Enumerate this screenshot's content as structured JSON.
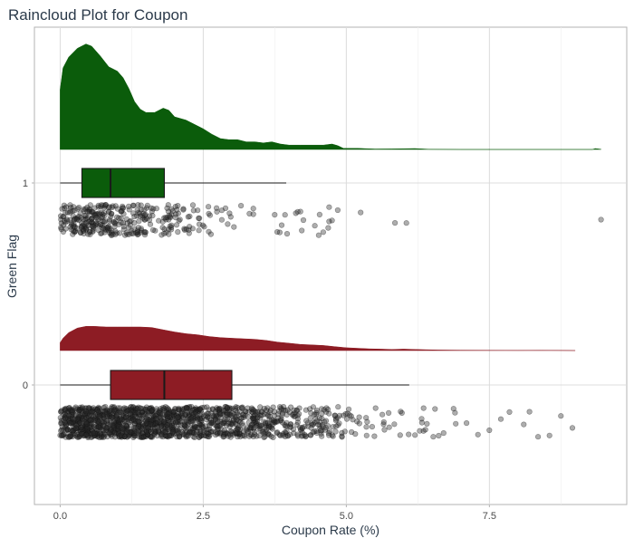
{
  "chart_data": {
    "type": "raincloud",
    "title": "Raincloud Plot for Coupon",
    "xlabel": "Coupon Rate (%)",
    "ylabel": "Green Flag",
    "xlim": [
      -0.45,
      9.9
    ],
    "x_ticks": [
      0.0,
      2.5,
      5.0,
      7.5
    ],
    "x_tick_labels": [
      "0.0",
      "2.5",
      "5.0",
      "7.5"
    ],
    "categories": [
      "1",
      "0"
    ],
    "grid": true,
    "legend": "none",
    "series": [
      {
        "category": "1",
        "color": "#0b5c0b",
        "box": {
          "min": 0.0,
          "q1": 0.38,
          "median": 0.88,
          "q3": 1.82,
          "max": 3.95
        },
        "density": [
          [
            0.0,
            0.55
          ],
          [
            0.05,
            0.75
          ],
          [
            0.15,
            0.85
          ],
          [
            0.3,
            0.93
          ],
          [
            0.45,
            0.97
          ],
          [
            0.55,
            0.95
          ],
          [
            0.7,
            0.86
          ],
          [
            0.85,
            0.76
          ],
          [
            1.0,
            0.72
          ],
          [
            1.1,
            0.66
          ],
          [
            1.2,
            0.56
          ],
          [
            1.3,
            0.44
          ],
          [
            1.4,
            0.37
          ],
          [
            1.5,
            0.34
          ],
          [
            1.65,
            0.34
          ],
          [
            1.8,
            0.38
          ],
          [
            1.9,
            0.36
          ],
          [
            2.0,
            0.3
          ],
          [
            2.2,
            0.27
          ],
          [
            2.35,
            0.23
          ],
          [
            2.5,
            0.19
          ],
          [
            2.65,
            0.14
          ],
          [
            2.8,
            0.1
          ],
          [
            2.95,
            0.09
          ],
          [
            3.1,
            0.09
          ],
          [
            3.25,
            0.07
          ],
          [
            3.4,
            0.07
          ],
          [
            3.55,
            0.06
          ],
          [
            3.7,
            0.07
          ],
          [
            3.85,
            0.05
          ],
          [
            4.0,
            0.04
          ],
          [
            4.2,
            0.04
          ],
          [
            4.4,
            0.04
          ],
          [
            4.6,
            0.04
          ],
          [
            4.75,
            0.05
          ],
          [
            4.85,
            0.035
          ],
          [
            4.95,
            0.01
          ],
          [
            5.2,
            0.01
          ],
          [
            5.5,
            0.004
          ],
          [
            5.8,
            0.005
          ],
          [
            6.2,
            0.008
          ],
          [
            6.45,
            0.002
          ],
          [
            7.0,
            0.0
          ],
          [
            9.3,
            0.0
          ],
          [
            9.35,
            0.008
          ],
          [
            9.45,
            0.002
          ]
        ],
        "outliers": [
          4.25,
          4.45,
          4.7,
          4.85,
          5.25,
          5.85,
          6.05,
          9.45
        ]
      },
      {
        "category": "0",
        "color": "#8d1c24",
        "box": {
          "min": 0.0,
          "q1": 0.88,
          "median": 1.82,
          "q3": 3.0,
          "max": 6.1
        },
        "density": [
          [
            0.0,
            0.14
          ],
          [
            0.05,
            0.22
          ],
          [
            0.15,
            0.32
          ],
          [
            0.3,
            0.4
          ],
          [
            0.45,
            0.43
          ],
          [
            0.6,
            0.43
          ],
          [
            0.8,
            0.42
          ],
          [
            1.0,
            0.42
          ],
          [
            1.2,
            0.42
          ],
          [
            1.4,
            0.42
          ],
          [
            1.6,
            0.41
          ],
          [
            1.8,
            0.37
          ],
          [
            2.0,
            0.33
          ],
          [
            2.2,
            0.3
          ],
          [
            2.4,
            0.28
          ],
          [
            2.6,
            0.25
          ],
          [
            2.8,
            0.23
          ],
          [
            3.0,
            0.22
          ],
          [
            3.2,
            0.21
          ],
          [
            3.4,
            0.2
          ],
          [
            3.6,
            0.18
          ],
          [
            3.8,
            0.15
          ],
          [
            4.0,
            0.13
          ],
          [
            4.2,
            0.11
          ],
          [
            4.4,
            0.1
          ],
          [
            4.6,
            0.09
          ],
          [
            4.8,
            0.07
          ],
          [
            5.0,
            0.05
          ],
          [
            5.2,
            0.04
          ],
          [
            5.4,
            0.03
          ],
          [
            5.6,
            0.025
          ],
          [
            5.8,
            0.02
          ],
          [
            6.0,
            0.025
          ],
          [
            6.2,
            0.02
          ],
          [
            6.4,
            0.015
          ],
          [
            6.6,
            0.01
          ],
          [
            7.0,
            0.006
          ],
          [
            7.5,
            0.005
          ],
          [
            8.0,
            0.004
          ],
          [
            8.4,
            0.005
          ],
          [
            8.7,
            0.003
          ],
          [
            9.0,
            0.0
          ]
        ],
        "outliers": [
          6.2,
          6.35,
          6.55,
          6.7,
          6.9,
          7.1,
          7.3,
          7.5,
          7.7,
          7.85,
          8.1,
          8.2,
          8.35,
          8.55,
          8.75,
          8.95
        ]
      }
    ]
  }
}
